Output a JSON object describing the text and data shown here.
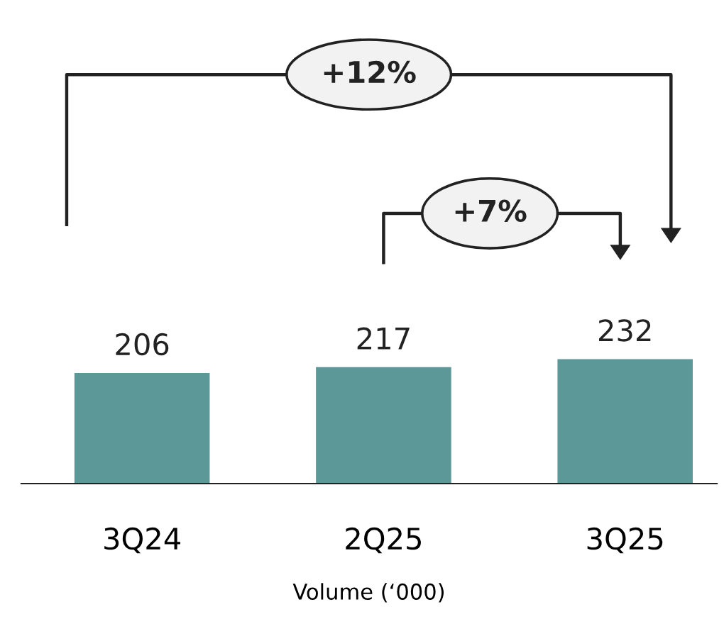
{
  "chart_data": {
    "type": "bar",
    "xlabel": "Volume (‘000)",
    "categories": [
      "3Q24",
      "2Q25",
      "3Q25"
    ],
    "values": [
      206,
      217,
      232
    ],
    "color": "#5b9897",
    "data_labels": true,
    "grid": false,
    "legend": false,
    "annotations": [
      "+12%",
      "+7%"
    ]
  }
}
